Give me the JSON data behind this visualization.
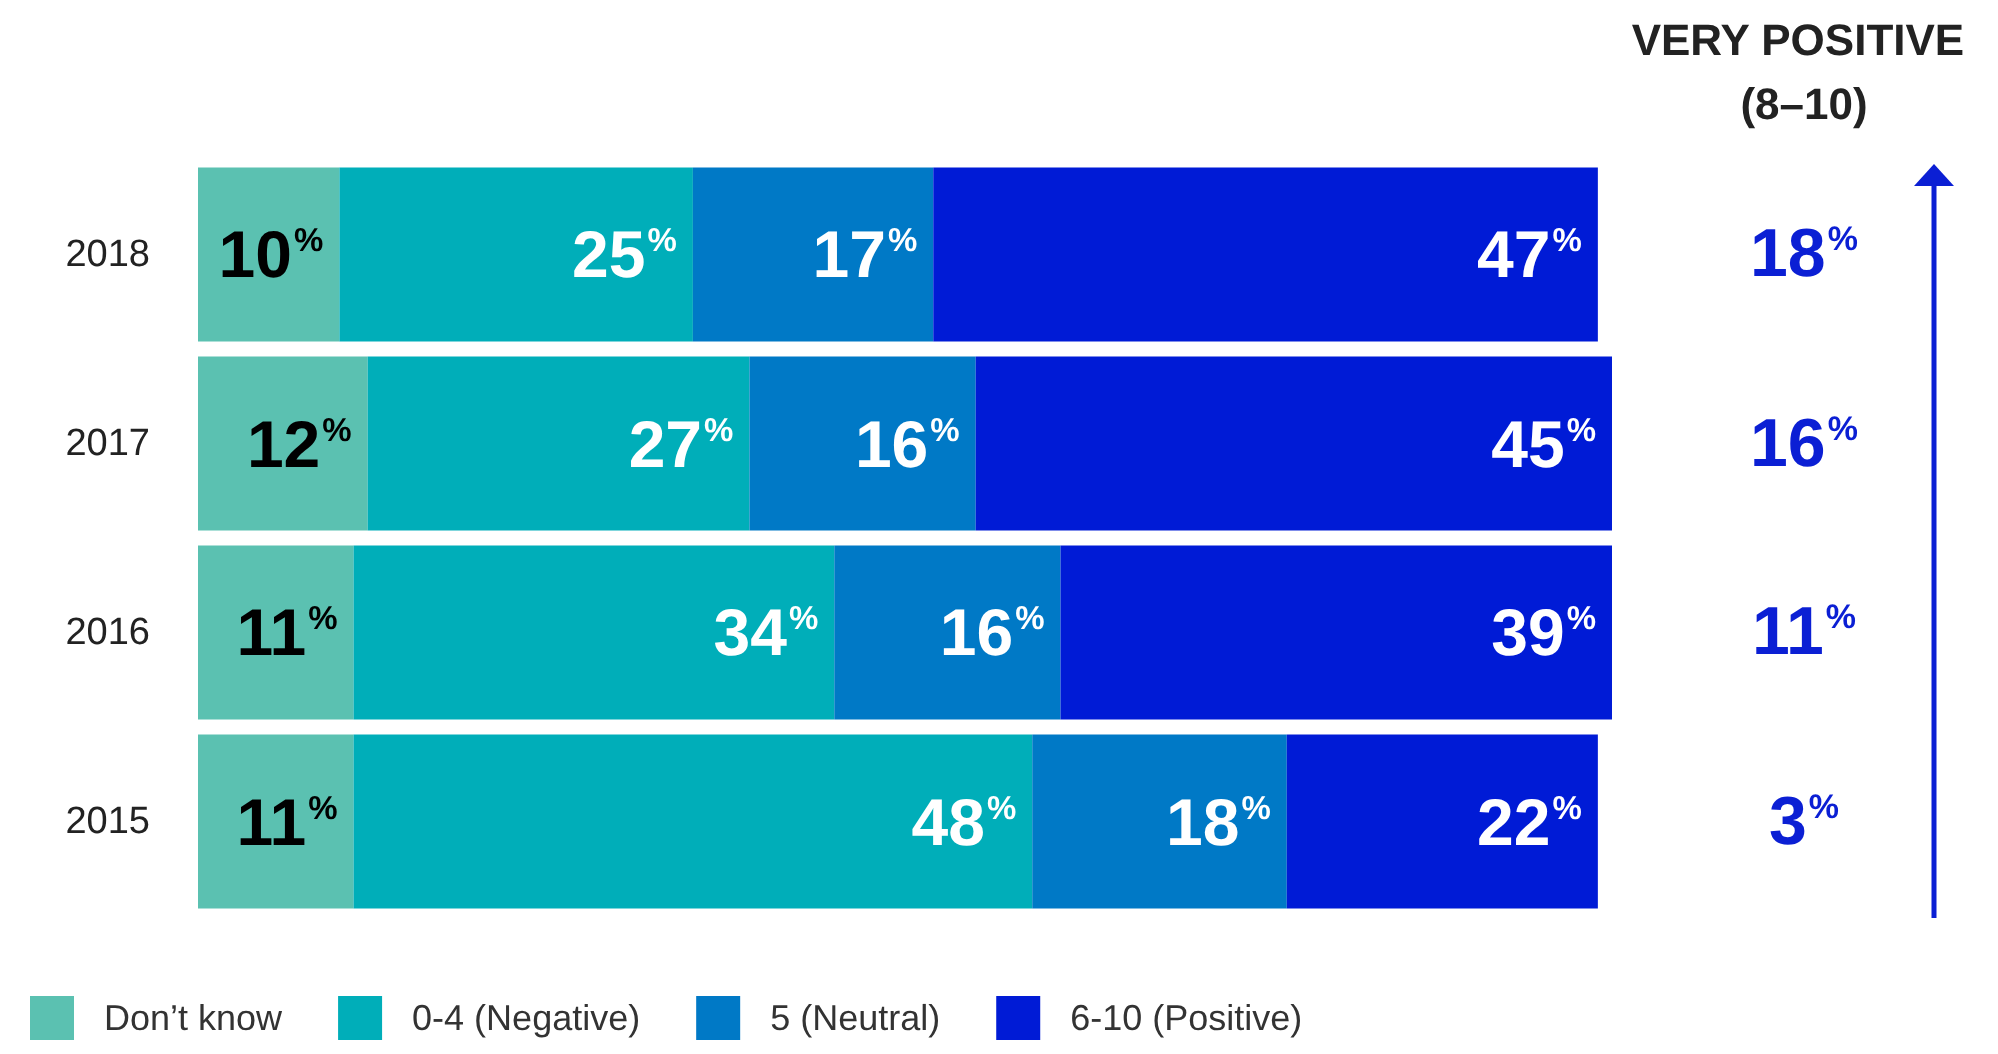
{
  "chart_data": {
    "type": "bar",
    "orientation": "horizontal",
    "stacked": true,
    "categories": [
      "2018",
      "2017",
      "2016",
      "2015"
    ],
    "series": [
      {
        "name": "Don’t know",
        "color": "#5bc1b1",
        "values": [
          10,
          12,
          11,
          11
        ],
        "value_labels": [
          "10$^{%}$",
          "12$^{%}$",
          "11$^{%}$",
          "11$^{%}$"
        ]
      },
      {
        "name": "0-4 (Negative)",
        "color": "#00aeb9",
        "values": [
          25,
          27,
          34,
          48
        ],
        "value_labels": [
          "25$^{%}$",
          "27$^{%}$",
          "34$^{%}$",
          "48$^{%}$"
        ]
      },
      {
        "name": "5 (Neutral)",
        "color": "#0079c6",
        "values": [
          17,
          16,
          16,
          18
        ],
        "value_labels": [
          "17$^{%}$",
          "16$^{%}$",
          "16$^{%}$",
          "18$^{%}$"
        ]
      },
      {
        "name": "6-10 (Positive)",
        "color": "#001bd6",
        "values": [
          47,
          45,
          39,
          22
        ],
        "value_labels": [
          "47$^{%}$",
          "45$^{%}$",
          "39$^{%}$",
          "22$^{%}$"
        ]
      }
    ],
    "tick_labels": "y",
    "legend": "bottom",
    "annotations": [
      "VERY POSITIVE (8–10)",
      "18$^{%}$",
      "16$^{%}$",
      "11$^{%}$",
      "3$^{%}$"
    ]
  }
}
